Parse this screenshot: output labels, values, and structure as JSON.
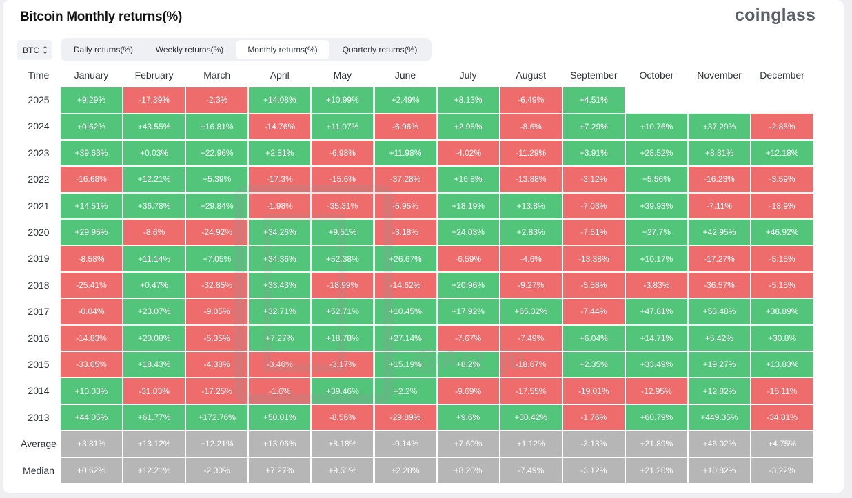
{
  "header": {
    "title": "Bitcoin Monthly returns(%)",
    "brand": "coinglass"
  },
  "toolbar": {
    "asset": "BTC",
    "tabs": [
      {
        "label": "Daily returns(%)",
        "active": false
      },
      {
        "label": "Weekly returns(%)",
        "active": false
      },
      {
        "label": "Monthly returns(%)",
        "active": true
      },
      {
        "label": "Quarterly returns(%)",
        "active": false
      }
    ]
  },
  "table": {
    "time_header": "Time",
    "months": [
      "January",
      "February",
      "March",
      "April",
      "May",
      "June",
      "July",
      "August",
      "September",
      "October",
      "November",
      "December"
    ],
    "rows": [
      {
        "label": "2025",
        "values": [
          "+9.29%",
          "-17.39%",
          "-2.3%",
          "+14.08%",
          "+10.99%",
          "+2.49%",
          "+8.13%",
          "-6.49%",
          "+4.51%",
          "",
          "",
          ""
        ]
      },
      {
        "label": "2024",
        "values": [
          "+0.62%",
          "+43.55%",
          "+16.81%",
          "-14.76%",
          "+11.07%",
          "-6.96%",
          "+2.95%",
          "-8.6%",
          "+7.29%",
          "+10.76%",
          "+37.29%",
          "-2.85%"
        ]
      },
      {
        "label": "2023",
        "values": [
          "+39.63%",
          "+0.03%",
          "+22.96%",
          "+2.81%",
          "-6.98%",
          "+11.98%",
          "-4.02%",
          "-11.29%",
          "+3.91%",
          "+28.52%",
          "+8.81%",
          "+12.18%"
        ]
      },
      {
        "label": "2022",
        "values": [
          "-16.68%",
          "+12.21%",
          "+5.39%",
          "-17.3%",
          "-15.6%",
          "-37.28%",
          "+16.8%",
          "-13.88%",
          "-3.12%",
          "+5.56%",
          "-16.23%",
          "-3.59%"
        ]
      },
      {
        "label": "2021",
        "values": [
          "+14.51%",
          "+36.78%",
          "+29.84%",
          "-1.98%",
          "-35.31%",
          "-5.95%",
          "+18.19%",
          "+13.8%",
          "-7.03%",
          "+39.93%",
          "-7.11%",
          "-18.9%"
        ]
      },
      {
        "label": "2020",
        "values": [
          "+29.95%",
          "-8.6%",
          "-24.92%",
          "+34.26%",
          "+9.51%",
          "-3.18%",
          "+24.03%",
          "+2.83%",
          "-7.51%",
          "+27.7%",
          "+42.95%",
          "+46.92%"
        ]
      },
      {
        "label": "2019",
        "values": [
          "-8.58%",
          "+11.14%",
          "+7.05%",
          "+34.36%",
          "+52.38%",
          "+26.67%",
          "-6.59%",
          "-4.6%",
          "-13.38%",
          "+10.17%",
          "-17.27%",
          "-5.15%"
        ]
      },
      {
        "label": "2018",
        "values": [
          "-25.41%",
          "+0.47%",
          "-32.85%",
          "+33.43%",
          "-18.99%",
          "-14.62%",
          "+20.96%",
          "-9.27%",
          "-5.58%",
          "-3.83%",
          "-36.57%",
          "-5.15%"
        ]
      },
      {
        "label": "2017",
        "values": [
          "-0.04%",
          "+23.07%",
          "-9.05%",
          "+32.71%",
          "+52.71%",
          "+10.45%",
          "+17.92%",
          "+65.32%",
          "-7.44%",
          "+47.81%",
          "+53.48%",
          "+38.89%"
        ]
      },
      {
        "label": "2016",
        "values": [
          "-14.83%",
          "+20.08%",
          "-5.35%",
          "+7.27%",
          "+18.78%",
          "+27.14%",
          "-7.67%",
          "-7.49%",
          "+6.04%",
          "+14.71%",
          "+5.42%",
          "+30.8%"
        ]
      },
      {
        "label": "2015",
        "values": [
          "-33.05%",
          "+18.43%",
          "-4.38%",
          "-3.46%",
          "-3.17%",
          "+15.19%",
          "+8.2%",
          "-18.67%",
          "+2.35%",
          "+33.49%",
          "+19.27%",
          "+13.83%"
        ]
      },
      {
        "label": "2014",
        "values": [
          "+10.03%",
          "-31.03%",
          "-17.25%",
          "-1.6%",
          "+39.46%",
          "+2.2%",
          "-9.69%",
          "-17.55%",
          "-19.01%",
          "-12.95%",
          "+12.82%",
          "-15.11%"
        ]
      },
      {
        "label": "2013",
        "values": [
          "+44.05%",
          "+61.77%",
          "+172.76%",
          "+50.01%",
          "-8.56%",
          "-29.89%",
          "+9.6%",
          "+30.42%",
          "-1.76%",
          "+60.79%",
          "+449.35%",
          "-34.81%"
        ]
      },
      {
        "label": "Average",
        "stat": true,
        "values": [
          "+3.81%",
          "+13.12%",
          "+12.21%",
          "+13.06%",
          "+8.18%",
          "-0.14%",
          "+7.60%",
          "+1.12%",
          "-3.13%",
          "+21.89%",
          "+46.02%",
          "+4.75%"
        ]
      },
      {
        "label": "Median",
        "stat": true,
        "values": [
          "+0.62%",
          "+12.21%",
          "-2.30%",
          "+7.27%",
          "+9.51%",
          "+2.20%",
          "+8.20%",
          "-7.49%",
          "-3.12%",
          "+21.20%",
          "+10.82%",
          "-3.22%"
        ]
      }
    ]
  },
  "colors": {
    "positive": "#52c57b",
    "negative": "#ee6c6c",
    "stat": "#b6b6b6"
  },
  "watermark": {
    "handle": "@Arz_ju"
  },
  "icons": {
    "asset_select": "chevron-updown-icon"
  }
}
